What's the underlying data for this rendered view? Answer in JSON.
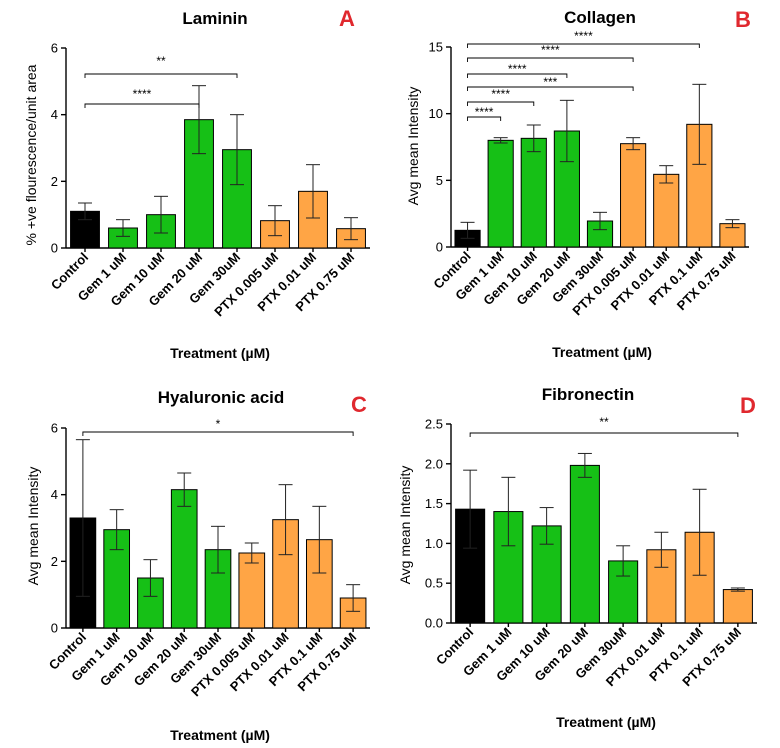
{
  "colors": {
    "black": "#000000",
    "green": "#16c016",
    "orange": "#ffa545",
    "letter": "#e0282e"
  },
  "chart_data": [
    {
      "id": "A",
      "type": "bar",
      "panel_letter": "A",
      "title": "Laminin",
      "ylabel": "% +ve flourescence/unit area",
      "xlabel": "Treatment (µM)",
      "ylim": [
        0,
        6
      ],
      "yticks": [
        "0",
        "2",
        "4",
        "6"
      ],
      "ytick_values": [
        0,
        2,
        4,
        6
      ],
      "categories": [
        "Control",
        "Gem 1 uM",
        "Gem 10 uM",
        "Gem 20 uM",
        "Gem 30uM",
        "PTX 0.005 uM",
        "PTX 0.01 uM",
        "PTX 0.75 uM"
      ],
      "values": [
        1.1,
        0.6,
        1.0,
        3.85,
        2.95,
        0.82,
        1.7,
        0.58
      ],
      "errors": [
        0.25,
        0.25,
        0.55,
        1.02,
        1.05,
        0.45,
        0.8,
        0.33
      ],
      "colors": [
        "black",
        "green",
        "green",
        "green",
        "green",
        "orange",
        "orange",
        "orange"
      ],
      "significance": [
        {
          "from": 0,
          "to": 3,
          "label": "****"
        },
        {
          "from": 0,
          "to": 4,
          "label": "**"
        }
      ]
    },
    {
      "id": "B",
      "type": "bar",
      "panel_letter": "B",
      "title": "Collagen",
      "ylabel": "Avg mean Intensity",
      "xlabel": "Treatment (µM)",
      "ylim": [
        0,
        15
      ],
      "yticks": [
        "0",
        "5",
        "10",
        "15"
      ],
      "ytick_values": [
        0,
        5,
        10,
        15
      ],
      "categories": [
        "Control",
        "Gem 1 uM",
        "Gem 10 uM",
        "Gem 20 uM",
        "Gem 30uM",
        "PTX 0.005 uM",
        "PTX 0.01 uM",
        "PTX 0.1 uM",
        "PTX 0.75 uM"
      ],
      "values": [
        1.25,
        8.0,
        8.15,
        8.7,
        1.95,
        7.75,
        5.45,
        9.2,
        1.75
      ],
      "errors": [
        0.6,
        0.2,
        1.0,
        2.3,
        0.65,
        0.45,
        0.65,
        3.0,
        0.3
      ],
      "colors": [
        "black",
        "green",
        "green",
        "green",
        "green",
        "orange",
        "orange",
        "orange",
        "orange"
      ],
      "significance": [
        {
          "from": 0,
          "to": 1,
          "label": "****"
        },
        {
          "from": 0,
          "to": 2,
          "label": "****"
        },
        {
          "from": 0,
          "to": 5,
          "label": "***"
        },
        {
          "from": 0,
          "to": 3,
          "label": "****"
        },
        {
          "from": 0,
          "to": 5,
          "label": "****"
        },
        {
          "from": 0,
          "to": 7,
          "label": "****"
        }
      ]
    },
    {
      "id": "C",
      "type": "bar",
      "panel_letter": "C",
      "title": "Hyaluronic acid",
      "ylabel": "Avg mean Intensity",
      "xlabel": "Treatment (µM)",
      "ylim": [
        0,
        6
      ],
      "yticks": [
        "0",
        "2",
        "4",
        "6"
      ],
      "ytick_values": [
        0,
        2,
        4,
        6
      ],
      "categories": [
        "Control",
        "Gem 1 uM",
        "Gem 10 uM",
        "Gem 20 uM",
        "Gem 30uM",
        "PTX 0.005 uM",
        "PTX 0.01 uM",
        "PTX 0.1 uM",
        "PTX 0.75 uM"
      ],
      "values": [
        3.3,
        2.95,
        1.5,
        4.15,
        2.35,
        2.25,
        3.25,
        2.65,
        0.9
      ],
      "errors": [
        2.35,
        0.6,
        0.55,
        0.5,
        0.7,
        0.3,
        1.05,
        1.0,
        0.4
      ],
      "colors": [
        "black",
        "green",
        "green",
        "green",
        "green",
        "orange",
        "orange",
        "orange",
        "orange"
      ],
      "significance": [
        {
          "from": 0,
          "to": 8,
          "label": "*"
        }
      ]
    },
    {
      "id": "D",
      "type": "bar",
      "panel_letter": "D",
      "title": "Fibronectin",
      "ylabel": "Avg mean Intensity",
      "xlabel": "Treatment (µM)",
      "ylim": [
        0,
        2.5
      ],
      "yticks": [
        "0.0",
        "0.5",
        "1.0",
        "1.5",
        "2.0",
        "2.5"
      ],
      "ytick_values": [
        0,
        0.5,
        1,
        1.5,
        2,
        2.5
      ],
      "categories": [
        "Control",
        "Gem 1 uM",
        "Gem 10 uM",
        "Gem 20 uM",
        "Gem 30uM",
        "PTX 0.01 uM",
        "PTX 0.1 uM",
        "PTX 0.75 uM"
      ],
      "values": [
        1.43,
        1.4,
        1.22,
        1.98,
        0.78,
        0.92,
        1.14,
        0.42
      ],
      "errors": [
        0.49,
        0.43,
        0.23,
        0.15,
        0.19,
        0.22,
        0.54,
        0.02
      ],
      "colors": [
        "black",
        "green",
        "green",
        "green",
        "green",
        "orange",
        "orange",
        "orange"
      ],
      "significance": [
        {
          "from": 0,
          "to": 7,
          "label": "**"
        }
      ]
    }
  ]
}
